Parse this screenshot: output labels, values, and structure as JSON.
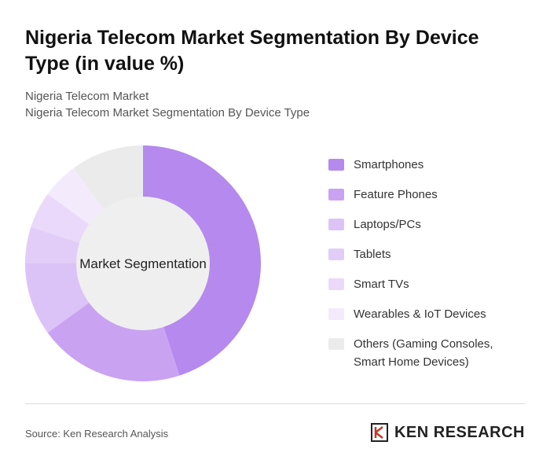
{
  "chart_data": {
    "type": "donut",
    "title": "Nigeria Telecom Market Segmentation By Device Type (in value %)",
    "subtitle": [
      "Nigeria Telecom Market",
      "Nigeria Telecom Market Segmentation By Device Type"
    ],
    "center_label": "Market Segmentation",
    "categories": [
      "Smartphones",
      "Feature Phones",
      "Laptops/PCs",
      "Tablets",
      "Smart TVs",
      "Wearables & IoT Devices",
      "Others (Gaming Consoles, Smart Home Devices)"
    ],
    "values": [
      45,
      20,
      10,
      5,
      5,
      5,
      10
    ],
    "colors": [
      "#b589ee",
      "#c9a2f2",
      "#dcc3f7",
      "#e2cdf8",
      "#ead9fa",
      "#f3eafc",
      "#ebebeb"
    ]
  },
  "footer": {
    "source": "Source: Ken Research Analysis",
    "logo": "KEN RESEARCH"
  }
}
